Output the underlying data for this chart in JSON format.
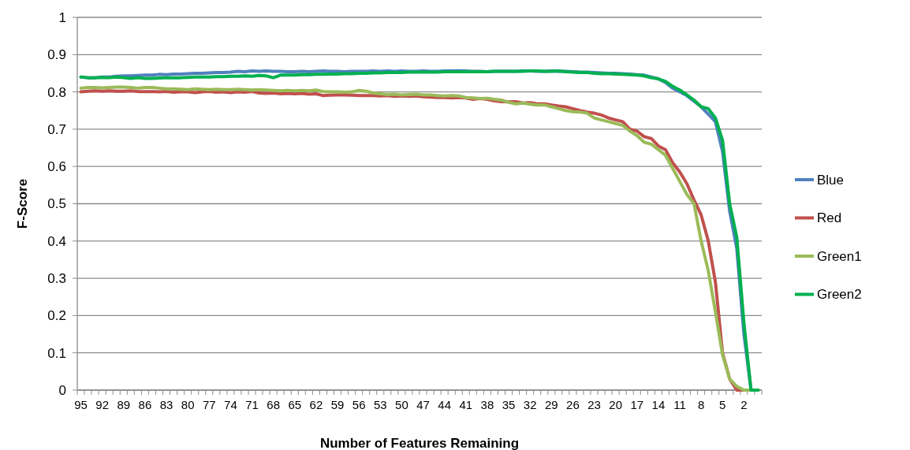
{
  "chart_data": {
    "type": "line",
    "xlabel": "Number of Features Remaining",
    "ylabel": "F-Score",
    "categories": [
      "95",
      null,
      null,
      "92",
      null,
      null,
      "89",
      null,
      null,
      "86",
      null,
      null,
      "83",
      null,
      null,
      "80",
      null,
      null,
      "77",
      null,
      null,
      "74",
      null,
      null,
      "71",
      null,
      null,
      "68",
      null,
      null,
      "65",
      null,
      null,
      "62",
      null,
      null,
      "59",
      null,
      null,
      "56",
      null,
      null,
      "53",
      null,
      null,
      "50",
      null,
      null,
      "47",
      null,
      null,
      "44",
      null,
      null,
      "41",
      null,
      null,
      "38",
      null,
      null,
      "35",
      null,
      null,
      "32",
      null,
      null,
      "29",
      null,
      null,
      "26",
      null,
      null,
      "23",
      null,
      null,
      "20",
      null,
      null,
      "17",
      null,
      null,
      "14",
      null,
      null,
      "11",
      null,
      null,
      "8",
      null,
      null,
      "5",
      null,
      null,
      "2",
      null,
      null
    ],
    "ylim": [
      0,
      1
    ],
    "yticks": [
      0,
      0.1,
      0.2,
      0.3,
      0.4,
      0.5,
      0.6,
      0.7,
      0.8,
      0.9,
      1
    ],
    "grid": "y",
    "legend": "right",
    "marker": "none",
    "line_style": "solid",
    "series": [
      {
        "name": "Blue",
        "color": "#4f81bd",
        "values": [
          0.84,
          0.838,
          0.838,
          0.84,
          0.84,
          0.842,
          0.843,
          0.843,
          0.844,
          0.845,
          0.845,
          0.847,
          0.846,
          0.848,
          0.848,
          0.849,
          0.85,
          0.85,
          0.851,
          0.852,
          0.852,
          0.853,
          0.855,
          0.854,
          0.856,
          0.855,
          0.856,
          0.855,
          0.855,
          0.854,
          0.854,
          0.855,
          0.854,
          0.855,
          0.856,
          0.855,
          0.855,
          0.854,
          0.855,
          0.855,
          0.855,
          0.856,
          0.855,
          0.856,
          0.855,
          0.856,
          0.855,
          0.855,
          0.856,
          0.855,
          0.855,
          0.856,
          0.856,
          0.857,
          0.856,
          0.855,
          0.855,
          0.854,
          0.855,
          0.855,
          0.855,
          0.855,
          0.856,
          0.856,
          0.855,
          0.855,
          0.856,
          0.855,
          0.855,
          0.854,
          0.853,
          0.853,
          0.852,
          0.851,
          0.85,
          0.85,
          0.849,
          0.848,
          0.846,
          0.845,
          0.84,
          0.835,
          0.825,
          0.81,
          0.8,
          0.79,
          0.775,
          0.76,
          0.74,
          0.72,
          0.64,
          0.48,
          0.38,
          0.15,
          0,
          0
        ]
      },
      {
        "name": "Red",
        "color": "#c0504d",
        "values": [
          0.8,
          0.802,
          0.803,
          0.802,
          0.803,
          0.802,
          0.802,
          0.803,
          0.801,
          0.801,
          0.801,
          0.8,
          0.801,
          0.799,
          0.8,
          0.8,
          0.798,
          0.8,
          0.801,
          0.799,
          0.8,
          0.798,
          0.8,
          0.799,
          0.801,
          0.797,
          0.796,
          0.797,
          0.795,
          0.796,
          0.795,
          0.796,
          0.794,
          0.795,
          0.79,
          0.791,
          0.792,
          0.792,
          0.791,
          0.79,
          0.79,
          0.79,
          0.789,
          0.79,
          0.788,
          0.789,
          0.788,
          0.789,
          0.787,
          0.786,
          0.785,
          0.785,
          0.784,
          0.785,
          0.784,
          0.78,
          0.782,
          0.78,
          0.776,
          0.774,
          0.773,
          0.774,
          0.77,
          0.771,
          0.768,
          0.768,
          0.765,
          0.762,
          0.76,
          0.755,
          0.75,
          0.746,
          0.743,
          0.738,
          0.73,
          0.725,
          0.72,
          0.7,
          0.695,
          0.68,
          0.675,
          0.655,
          0.645,
          0.61,
          0.585,
          0.554,
          0.51,
          0.47,
          0.4,
          0.29,
          0.1,
          0.03,
          0,
          0,
          0,
          0
        ]
      },
      {
        "name": "Green1",
        "color": "#9bbb59",
        "values": [
          0.81,
          0.812,
          0.812,
          0.811,
          0.812,
          0.813,
          0.813,
          0.812,
          0.81,
          0.812,
          0.812,
          0.81,
          0.808,
          0.808,
          0.807,
          0.806,
          0.808,
          0.807,
          0.806,
          0.807,
          0.806,
          0.806,
          0.807,
          0.806,
          0.805,
          0.806,
          0.805,
          0.804,
          0.803,
          0.804,
          0.803,
          0.804,
          0.803,
          0.805,
          0.801,
          0.8,
          0.8,
          0.799,
          0.8,
          0.804,
          0.802,
          0.797,
          0.795,
          0.793,
          0.794,
          0.792,
          0.793,
          0.794,
          0.792,
          0.792,
          0.79,
          0.789,
          0.79,
          0.789,
          0.785,
          0.784,
          0.782,
          0.783,
          0.78,
          0.778,
          0.772,
          0.768,
          0.77,
          0.767,
          0.765,
          0.765,
          0.76,
          0.755,
          0.75,
          0.747,
          0.746,
          0.743,
          0.73,
          0.725,
          0.72,
          0.715,
          0.71,
          0.695,
          0.683,
          0.665,
          0.66,
          0.645,
          0.63,
          0.595,
          0.56,
          0.525,
          0.5,
          0.4,
          0.32,
          0.21,
          0.095,
          0.03,
          0.01,
          0,
          0,
          0
        ]
      },
      {
        "name": "Green2",
        "color": "#00b050",
        "values": [
          0.84,
          0.838,
          0.838,
          0.839,
          0.838,
          0.84,
          0.838,
          0.836,
          0.838,
          0.836,
          0.836,
          0.837,
          0.838,
          0.838,
          0.838,
          0.839,
          0.84,
          0.84,
          0.84,
          0.841,
          0.841,
          0.842,
          0.842,
          0.843,
          0.842,
          0.844,
          0.843,
          0.838,
          0.845,
          0.845,
          0.845,
          0.846,
          0.846,
          0.847,
          0.847,
          0.848,
          0.848,
          0.849,
          0.849,
          0.85,
          0.85,
          0.851,
          0.851,
          0.852,
          0.852,
          0.852,
          0.853,
          0.853,
          0.853,
          0.853,
          0.853,
          0.854,
          0.854,
          0.854,
          0.854,
          0.854,
          0.854,
          0.854,
          0.855,
          0.855,
          0.855,
          0.855,
          0.855,
          0.856,
          0.856,
          0.855,
          0.855,
          0.856,
          0.854,
          0.853,
          0.852,
          0.852,
          0.85,
          0.849,
          0.849,
          0.848,
          0.847,
          0.846,
          0.845,
          0.843,
          0.838,
          0.835,
          0.828,
          0.815,
          0.805,
          0.792,
          0.778,
          0.76,
          0.755,
          0.73,
          0.67,
          0.5,
          0.41,
          0.18,
          0,
          0
        ]
      }
    ]
  }
}
